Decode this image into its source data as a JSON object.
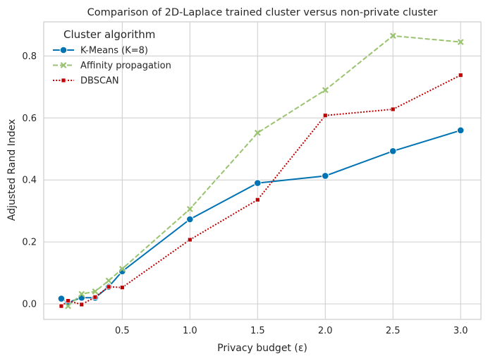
{
  "chart_data": {
    "type": "line",
    "title": "Comparison of 2D-Laplace trained cluster versus non-private cluster",
    "xlabel": "Privacy budget (ε)",
    "ylabel": "Adjusted Rand Index",
    "xlim": [
      -0.08,
      3.15
    ],
    "ylim": [
      -0.05,
      0.91
    ],
    "xticks": [
      0.5,
      1.0,
      1.5,
      2.0,
      2.5,
      3.0
    ],
    "xtick_labels": [
      "0.5",
      "1.0",
      "1.5",
      "2.0",
      "2.5",
      "3.0"
    ],
    "yticks": [
      0.0,
      0.2,
      0.4,
      0.6,
      0.8
    ],
    "ytick_labels": [
      "0.0",
      "0.2",
      "0.4",
      "0.6",
      "0.8"
    ],
    "grid": true,
    "legend": {
      "title": "Cluster algorithm",
      "placement": "top-left"
    },
    "series": [
      {
        "name": "K-Means (K=8)",
        "color": "#0173b2",
        "marker": "circle",
        "linestyle": "solid",
        "x": [
          0.05,
          0.1,
          0.2,
          0.3,
          0.4,
          0.5,
          1.0,
          1.5,
          2.0,
          2.5,
          3.0
        ],
        "y": [
          0.017,
          0.005,
          0.02,
          0.02,
          0.055,
          0.105,
          0.273,
          0.39,
          0.413,
          0.493,
          0.56
        ]
      },
      {
        "name": "Affinity propagation",
        "color": "#9ac36f",
        "marker": "x",
        "linestyle": "dashed",
        "x": [
          0.1,
          0.2,
          0.3,
          0.4,
          0.5,
          1.0,
          1.5,
          2.0,
          2.5,
          3.0
        ],
        "y": [
          -0.007,
          0.032,
          0.04,
          0.075,
          0.113,
          0.306,
          0.552,
          0.69,
          0.865,
          0.845
        ]
      },
      {
        "name": "DBSCAN",
        "color": "#c00000",
        "marker": "square",
        "linestyle": "dotted",
        "x": [
          0.05,
          0.1,
          0.2,
          0.3,
          0.4,
          0.5,
          1.0,
          1.5,
          2.0,
          2.5,
          3.0
        ],
        "y": [
          -0.007,
          0.01,
          -0.002,
          0.022,
          0.055,
          0.053,
          0.207,
          0.336,
          0.608,
          0.628,
          0.738
        ]
      }
    ]
  }
}
